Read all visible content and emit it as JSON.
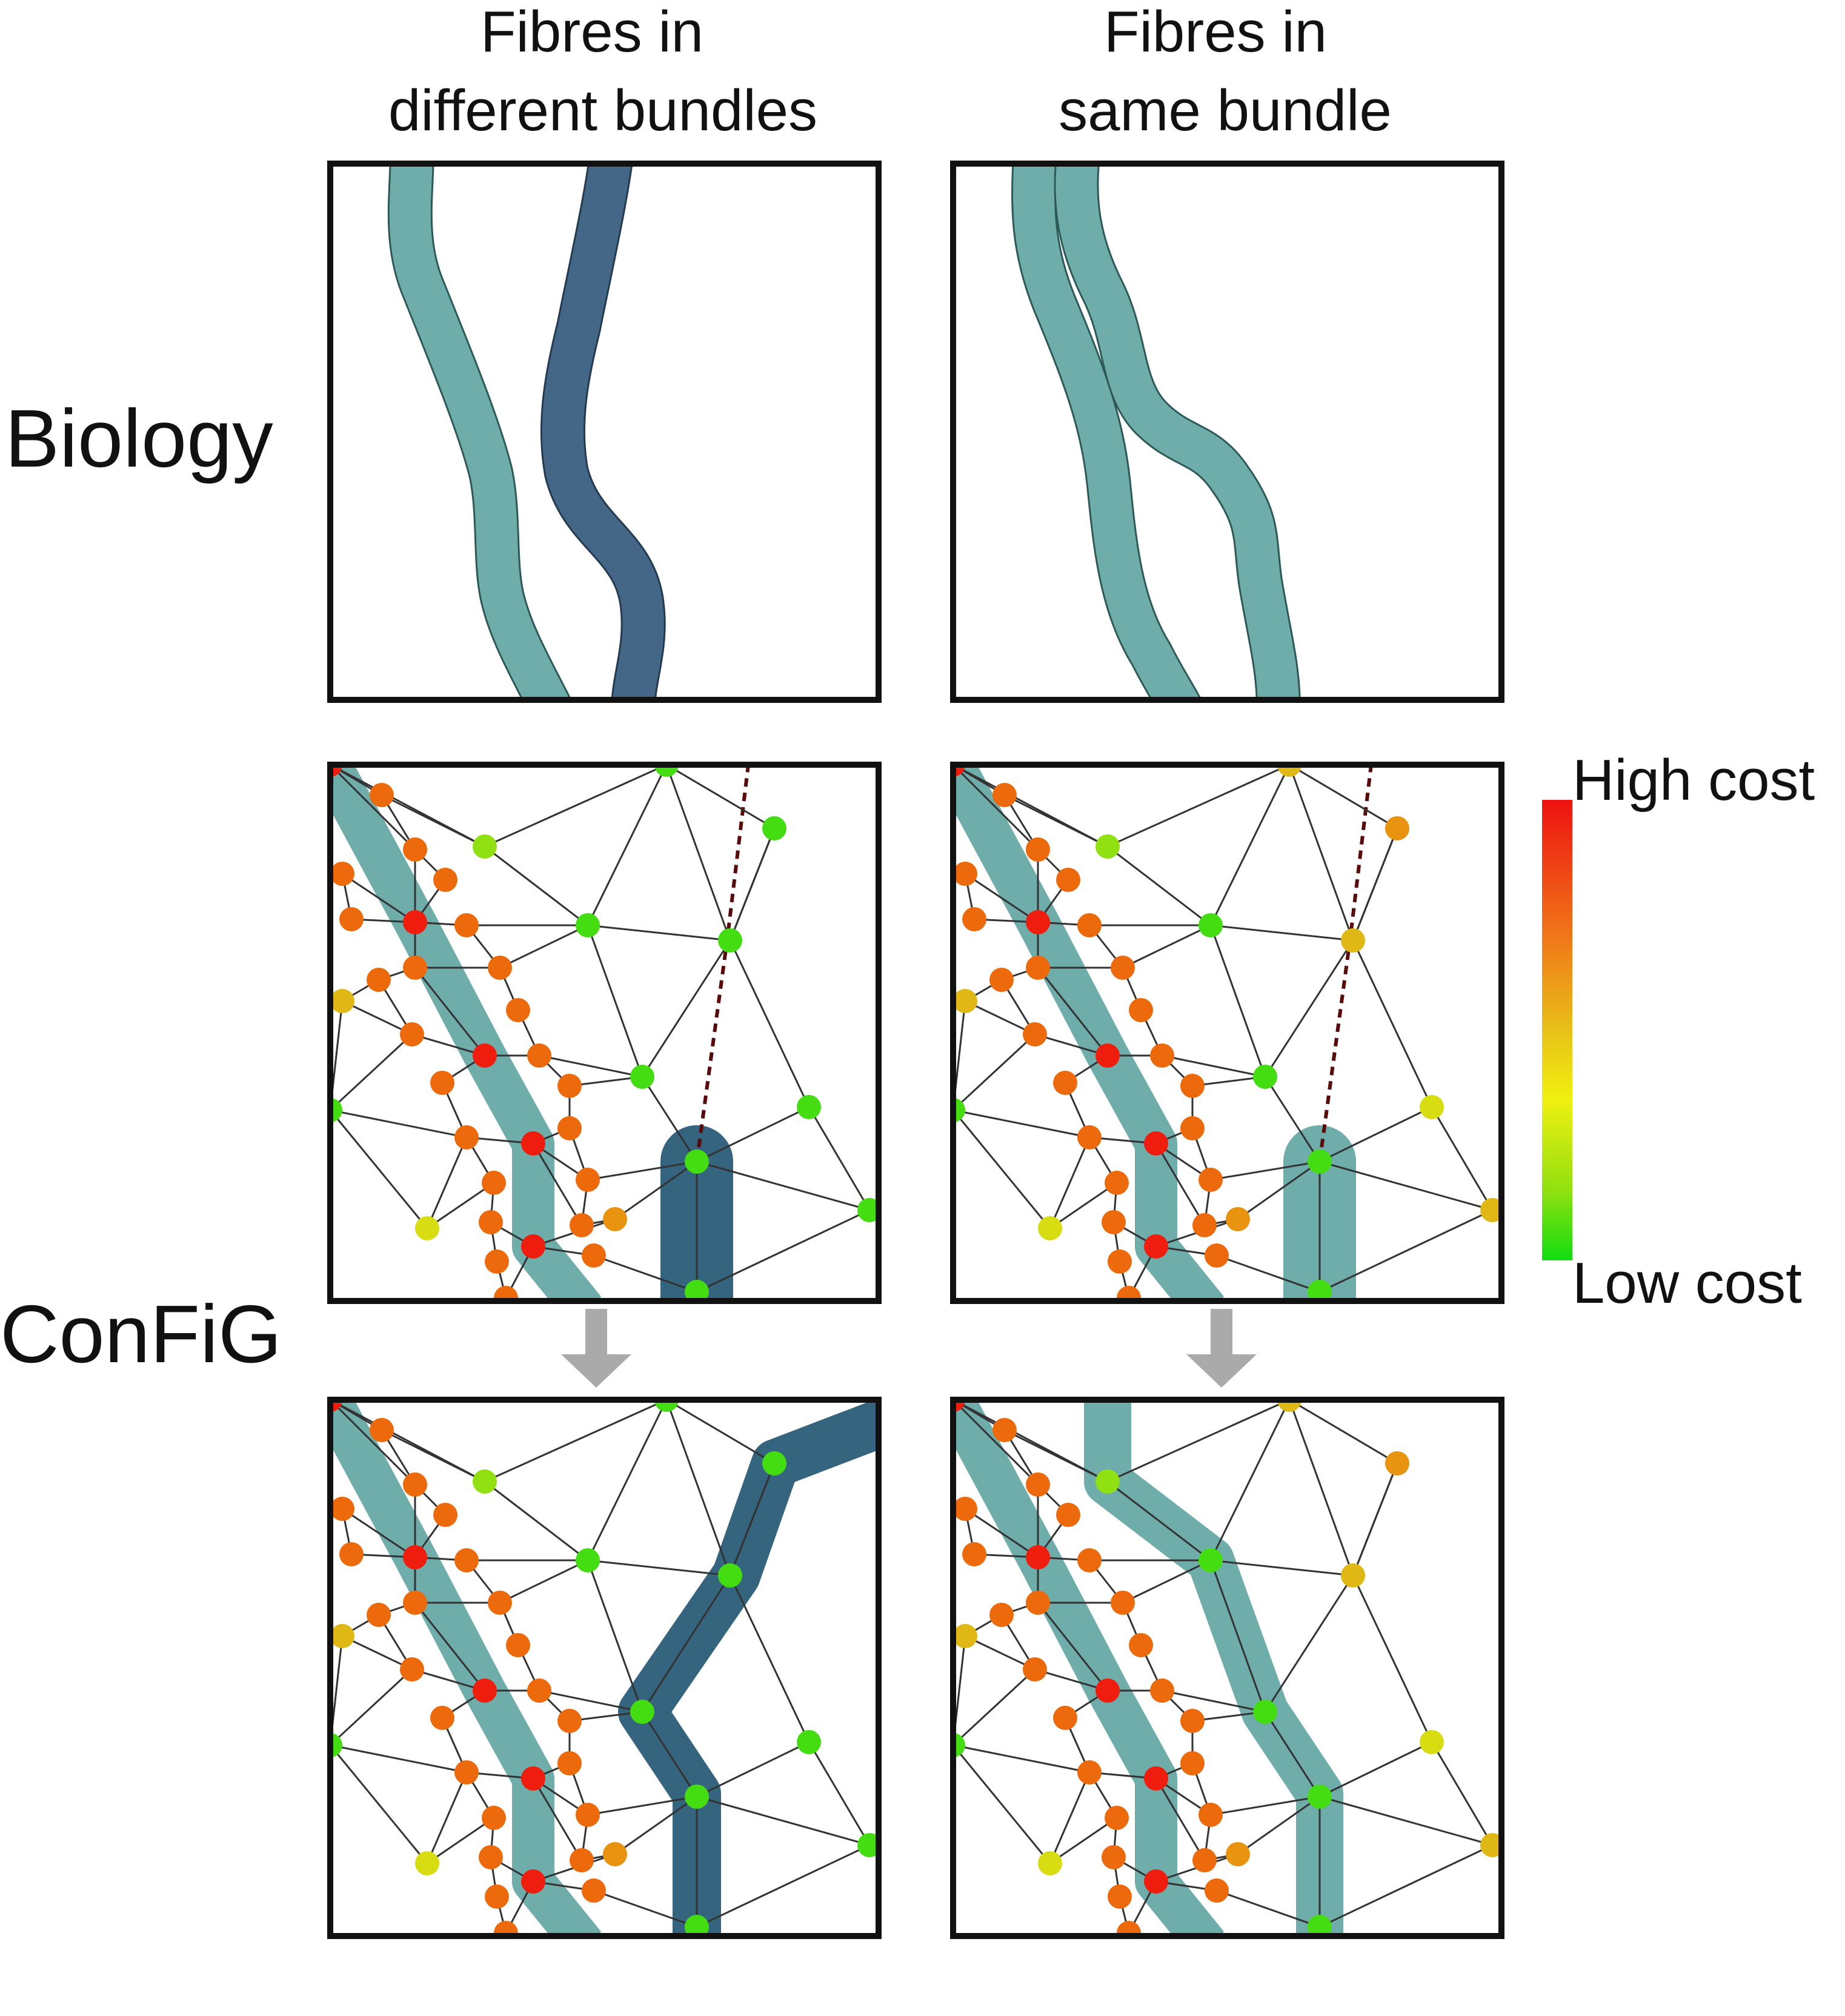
{
  "columns": {
    "left": [
      "Fibres in",
      "different bundles"
    ],
    "right": [
      "Fibres in",
      "same bundle"
    ]
  },
  "rows": {
    "top": "Biology",
    "bottom": "ConFiG"
  },
  "colorbar": {
    "high": "High cost",
    "low": "Low cost",
    "stops": [
      "#ee1111",
      "#f07818",
      "#e8c018",
      "#f0f010",
      "#90e010",
      "#11dd11"
    ]
  },
  "colors": {
    "fibre_teal": "#6fadab",
    "fibre_dark": "#35647f",
    "fibre_dark_bio": "#456787",
    "arrow": "#aaaaaa",
    "node_red": "#ee1d0e",
    "node_orange": "#ec6a0c",
    "node_amber": "#e89410",
    "node_gold": "#e0b815",
    "node_yellow": "#d8dd12",
    "node_lime": "#90e012",
    "node_green": "#44dd12",
    "edge": "#333333",
    "dashed": "#5a0a0a"
  }
}
